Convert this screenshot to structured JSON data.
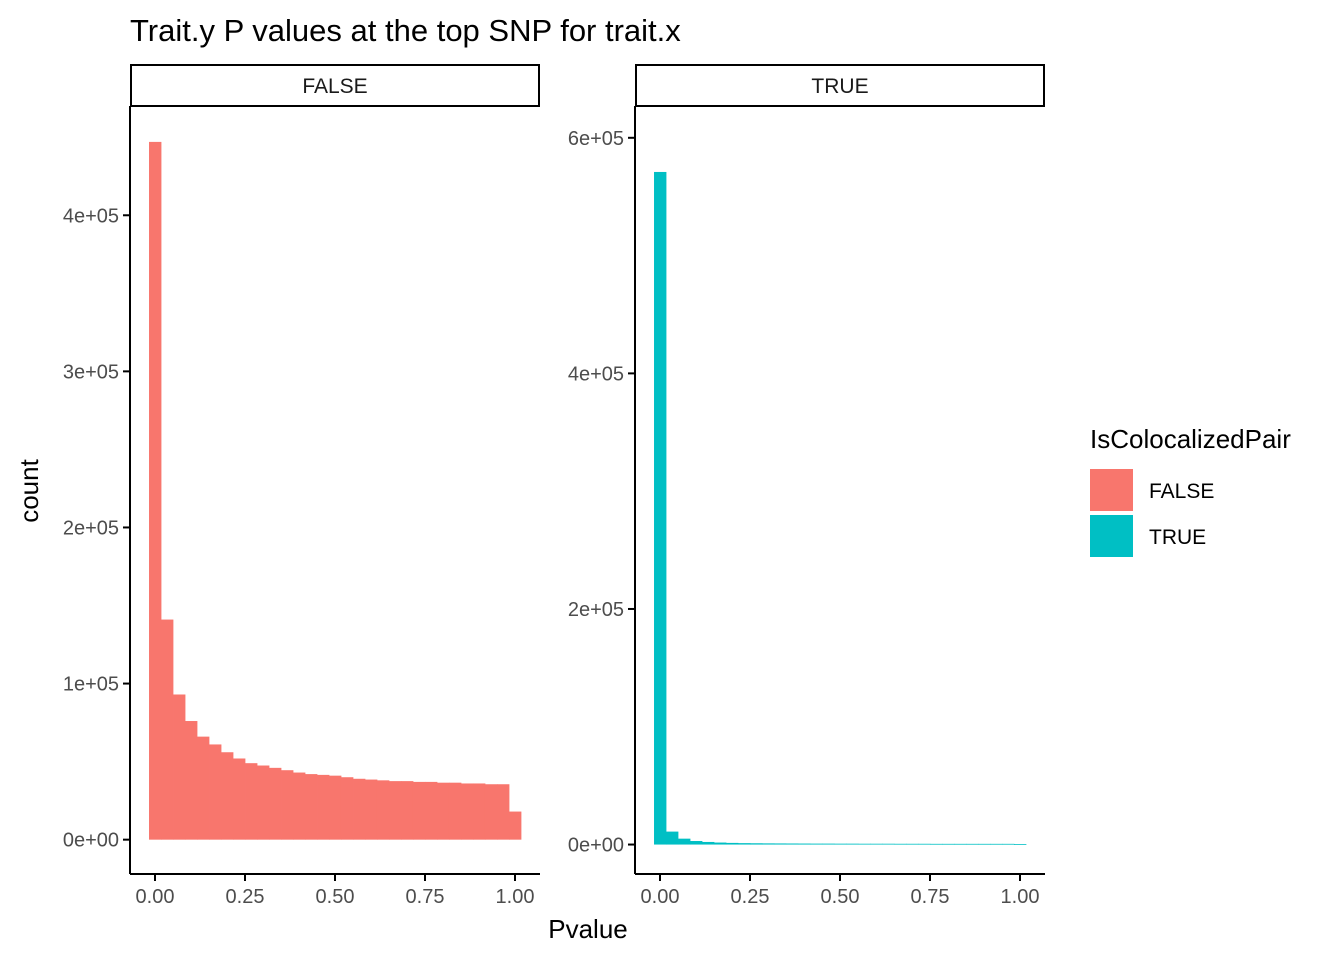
{
  "chart_data": {
    "type": "bar",
    "title": "Trait.y P values at the top SNP for trait.x",
    "xlabel": "Pvalue",
    "ylabel": "count",
    "x_ticks": [
      0,
      0.25,
      0.5,
      0.75,
      1
    ],
    "x_tick_labels": [
      "0.00",
      "0.25",
      "0.50",
      "0.75",
      "1.00"
    ],
    "bin_width": 0.0333,
    "bin_centers": [
      0,
      0.0333,
      0.0667,
      0.1,
      0.1333,
      0.1667,
      0.2,
      0.2333,
      0.2667,
      0.3,
      0.3333,
      0.3667,
      0.4,
      0.4333,
      0.4667,
      0.5,
      0.5333,
      0.5667,
      0.6,
      0.6333,
      0.6667,
      0.7,
      0.7333,
      0.7667,
      0.8,
      0.8333,
      0.8667,
      0.9,
      0.9333,
      0.9667,
      1.0
    ],
    "legend": {
      "title": "IsColocalizedPair",
      "position": "right",
      "entries": [
        {
          "label": "FALSE",
          "color": "#F8766D"
        },
        {
          "label": "TRUE",
          "color": "#00BFC4"
        }
      ]
    },
    "facets": [
      {
        "strip": "FALSE",
        "color": "#F8766D",
        "ylim": [
          -22000,
          470000
        ],
        "y_ticks": [
          0,
          100000,
          200000,
          300000,
          400000
        ],
        "y_tick_labels": [
          "0e+00",
          "1e+05",
          "2e+05",
          "3e+05",
          "4e+05"
        ],
        "values": [
          447000,
          141000,
          93000,
          76000,
          66000,
          61000,
          56000,
          52000,
          49000,
          47500,
          46000,
          44500,
          43000,
          42000,
          41500,
          41000,
          40000,
          39000,
          38500,
          38000,
          37500,
          37500,
          37000,
          37000,
          36500,
          36500,
          36000,
          36000,
          35500,
          35500,
          18000
        ]
      },
      {
        "strip": "TRUE",
        "color": "#00BFC4",
        "ylim": [
          -25000,
          627000
        ],
        "y_ticks": [
          0,
          200000,
          400000,
          600000
        ],
        "y_tick_labels": [
          "0e+00",
          "2e+05",
          "4e+05",
          "6e+05"
        ],
        "values": [
          571000,
          11000,
          5000,
          3000,
          2200,
          1700,
          1400,
          1200,
          1100,
          1000,
          950,
          900,
          850,
          800,
          800,
          750,
          750,
          700,
          700,
          700,
          650,
          650,
          650,
          600,
          600,
          600,
          600,
          600,
          600,
          600,
          300
        ]
      }
    ]
  }
}
